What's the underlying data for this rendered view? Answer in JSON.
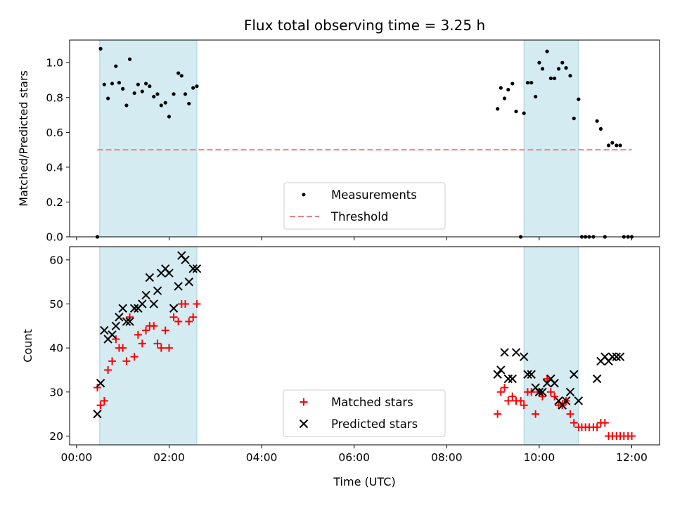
{
  "chart_data": [
    {
      "type": "scatter",
      "panel": "top",
      "title": "Flux total observing time = 3.25 h",
      "xlabel": "",
      "ylabel": "Matched/Predicted stars",
      "xlim": [
        -0.15,
        12.6
      ],
      "ylim": [
        0,
        1.13
      ],
      "yticks": [
        0.0,
        0.2,
        0.4,
        0.6,
        0.8,
        1.0
      ],
      "ytick_labels": [
        "0.0",
        "0.2",
        "0.4",
        "0.6",
        "0.8",
        "1.0"
      ],
      "shaded_intervals": [
        [
          0.5,
          2.6
        ],
        [
          9.67,
          10.85
        ]
      ],
      "shade_color": "#d4ebf1",
      "legend_position": "lower center",
      "series": [
        {
          "name": "Measurements",
          "marker": "dot",
          "color": "#000000",
          "x": [
            0.45,
            0.52,
            0.6,
            0.68,
            0.77,
            0.85,
            0.92,
            1.0,
            1.08,
            1.15,
            1.25,
            1.33,
            1.42,
            1.5,
            1.58,
            1.67,
            1.75,
            1.83,
            1.92,
            2.0,
            2.1,
            2.2,
            2.27,
            2.35,
            2.43,
            2.52,
            2.6,
            9.1,
            9.17,
            9.25,
            9.33,
            9.42,
            9.5,
            9.6,
            9.67,
            9.75,
            9.83,
            9.92,
            10.0,
            10.07,
            10.17,
            10.25,
            10.33,
            10.42,
            10.5,
            10.58,
            10.67,
            10.75,
            10.85,
            10.92,
            11.0,
            11.08,
            11.17,
            11.25,
            11.33,
            11.42,
            11.5,
            11.58,
            11.67,
            11.75,
            11.83,
            11.92,
            12.0
          ],
          "y": [
            0.0,
            1.08,
            0.875,
            0.795,
            0.88,
            0.98,
            0.885,
            0.85,
            0.755,
            1.02,
            0.825,
            0.875,
            0.835,
            0.88,
            0.865,
            0.805,
            0.82,
            0.755,
            0.77,
            0.69,
            0.82,
            0.94,
            0.925,
            0.82,
            0.765,
            0.855,
            0.865,
            0.735,
            0.855,
            0.795,
            0.845,
            0.88,
            0.72,
            0.0,
            0.71,
            0.885,
            0.885,
            0.805,
            1.0,
            0.965,
            1.065,
            0.91,
            0.91,
            0.965,
            1.0,
            0.97,
            0.925,
            0.68,
            0.79,
            0.0,
            0.0,
            0.0,
            0.0,
            0.665,
            0.62,
            0.0,
            0.525,
            0.54,
            0.525,
            0.525,
            0.0,
            0.0,
            0.0
          ]
        },
        {
          "name": "Threshold",
          "style": "dashed",
          "color": "#f08080",
          "x": [
            0.45,
            12.0
          ],
          "y": [
            0.5,
            0.5
          ]
        }
      ]
    },
    {
      "type": "scatter",
      "panel": "bottom",
      "xlabel": "Time (UTC)",
      "ylabel": "Count",
      "xlim": [
        -0.15,
        12.6
      ],
      "ylim": [
        18,
        63
      ],
      "yticks": [
        20,
        30,
        40,
        50,
        60
      ],
      "ytick_labels": [
        "20",
        "30",
        "40",
        "50",
        "60"
      ],
      "xticks": [
        0,
        2,
        4,
        6,
        8,
        10,
        12
      ],
      "xtick_labels": [
        "00:00",
        "02:00",
        "04:00",
        "06:00",
        "08:00",
        "10:00",
        "12:00"
      ],
      "shaded_intervals": [
        [
          0.5,
          2.6
        ],
        [
          9.67,
          10.85
        ]
      ],
      "shade_color": "#d4ebf1",
      "legend_position": "lower center",
      "series": [
        {
          "name": "Matched stars",
          "marker": "plus",
          "color": "#ff0000",
          "x": [
            0.45,
            0.52,
            0.6,
            0.68,
            0.77,
            0.85,
            0.92,
            1.0,
            1.08,
            1.15,
            1.25,
            1.33,
            1.42,
            1.5,
            1.58,
            1.67,
            1.75,
            1.83,
            1.92,
            2.0,
            2.1,
            2.2,
            2.27,
            2.35,
            2.43,
            2.52,
            2.6,
            9.1,
            9.17,
            9.25,
            9.33,
            9.42,
            9.5,
            9.6,
            9.67,
            9.75,
            9.83,
            9.92,
            10.0,
            10.07,
            10.17,
            10.25,
            10.33,
            10.42,
            10.5,
            10.58,
            10.67,
            10.75,
            10.85,
            10.92,
            11.0,
            11.08,
            11.17,
            11.25,
            11.33,
            11.42,
            11.5,
            11.58,
            11.67,
            11.75,
            11.83,
            11.92,
            12.0
          ],
          "y": [
            31,
            27,
            28,
            35,
            37,
            42,
            40,
            40,
            37,
            47,
            38,
            43,
            41,
            44,
            45,
            45,
            41,
            40,
            44,
            40,
            47,
            46,
            50,
            50,
            46,
            47,
            50,
            25,
            30,
            31,
            28,
            29,
            28,
            28,
            27,
            30,
            30,
            25,
            30,
            29,
            33,
            30,
            29,
            27,
            27,
            28,
            25,
            23,
            22,
            22,
            22,
            22,
            22,
            22,
            23,
            23,
            20,
            20,
            20,
            20,
            20,
            20,
            20
          ]
        },
        {
          "name": "Predicted stars",
          "marker": "x",
          "color": "#000000",
          "x": [
            0.45,
            0.52,
            0.6,
            0.68,
            0.77,
            0.85,
            0.92,
            1.0,
            1.08,
            1.15,
            1.25,
            1.33,
            1.42,
            1.5,
            1.58,
            1.67,
            1.75,
            1.83,
            1.92,
            2.0,
            2.1,
            2.2,
            2.27,
            2.35,
            2.43,
            2.52,
            2.6,
            9.1,
            9.17,
            9.25,
            9.33,
            9.42,
            9.5,
            9.67,
            9.75,
            9.83,
            9.92,
            10.0,
            10.07,
            10.17,
            10.25,
            10.33,
            10.42,
            10.5,
            10.58,
            10.67,
            10.75,
            10.85,
            11.25,
            11.33,
            11.42,
            11.5,
            11.58,
            11.67,
            11.75
          ],
          "y": [
            25,
            32,
            44,
            42,
            43,
            45,
            47,
            49,
            46,
            46,
            49,
            49,
            50,
            52,
            56,
            50,
            53,
            57,
            58,
            57,
            49,
            54,
            61,
            60,
            55,
            58,
            58,
            34,
            35,
            39,
            33,
            33,
            39,
            38,
            34,
            34,
            31,
            30,
            30,
            32,
            33,
            32,
            28,
            27,
            28,
            30,
            34,
            28,
            33,
            37,
            38,
            37,
            38,
            38,
            38
          ]
        }
      ]
    }
  ]
}
